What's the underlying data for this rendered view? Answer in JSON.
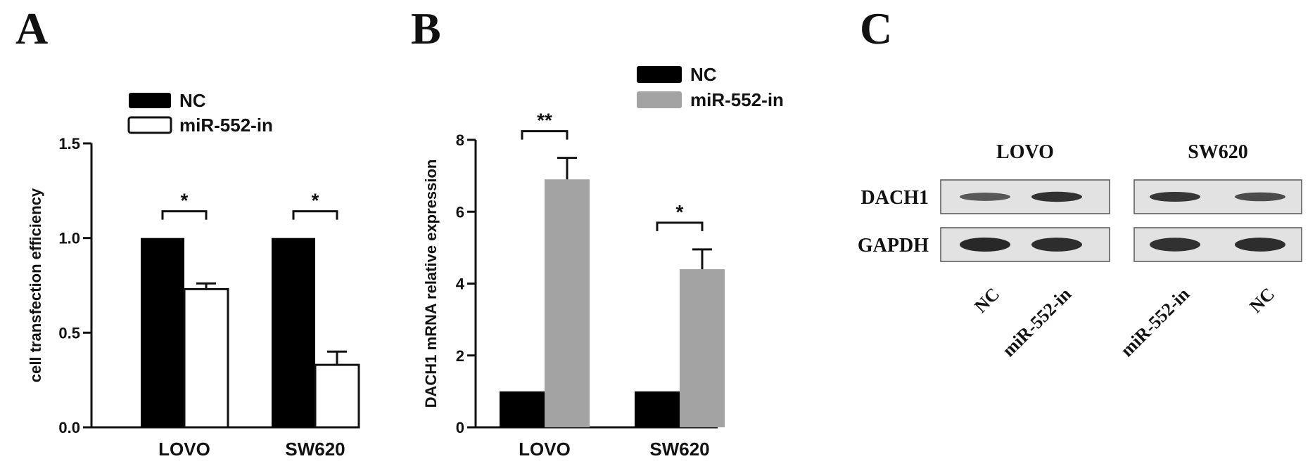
{
  "panels": {
    "a": "A",
    "b": "B",
    "c": "C"
  },
  "chart_data": [
    {
      "type": "bar",
      "panel": "A",
      "categories": [
        "LOVO",
        "SW620"
      ],
      "series": [
        {
          "name": "NC",
          "values": [
            1.0,
            1.0
          ],
          "errors": [
            0,
            0
          ],
          "color": "#000000",
          "fill": "solid"
        },
        {
          "name": "miR-552-in",
          "values": [
            0.73,
            0.33
          ],
          "errors": [
            0.03,
            0.07
          ],
          "color": "#000000",
          "fill": "hollow"
        }
      ],
      "ylabel": "cell transfection efficiency",
      "ylim": [
        0,
        1.5
      ],
      "yticks": [
        "0.0",
        "0.5",
        "1.0",
        "1.5"
      ],
      "significance": [
        "*",
        "*"
      ],
      "legend": "top-left",
      "grid": false
    },
    {
      "type": "bar",
      "panel": "B",
      "categories": [
        "LOVO",
        "SW620"
      ],
      "series": [
        {
          "name": "NC",
          "values": [
            1.0,
            1.0
          ],
          "errors": [
            0,
            0
          ],
          "color": "#000000",
          "fill": "solid"
        },
        {
          "name": "miR-552-in",
          "values": [
            6.9,
            4.4
          ],
          "errors": [
            0.6,
            0.55
          ],
          "color": "#a3a3a3",
          "fill": "solid"
        }
      ],
      "ylabel": "DACH1 mRNA relative expression",
      "ylim": [
        0,
        8
      ],
      "yticks": [
        "0",
        "2",
        "4",
        "6",
        "8"
      ],
      "significance": [
        "**",
        "*"
      ],
      "legend": "top-right",
      "grid": false
    }
  ],
  "blot": {
    "groups": [
      {
        "title": "LOVO",
        "lanes": [
          "NC",
          "miR-552-in"
        ],
        "dach1_intensity": [
          0.45,
          0.9
        ],
        "gapdh_intensity": [
          1.0,
          0.95
        ]
      },
      {
        "title": "SW620",
        "lanes": [
          "miR-552-in",
          "NC"
        ],
        "dach1_intensity": [
          0.85,
          0.6
        ],
        "gapdh_intensity": [
          0.9,
          0.95
        ]
      }
    ],
    "rows": [
      "DACH1",
      "GAPDH"
    ]
  }
}
